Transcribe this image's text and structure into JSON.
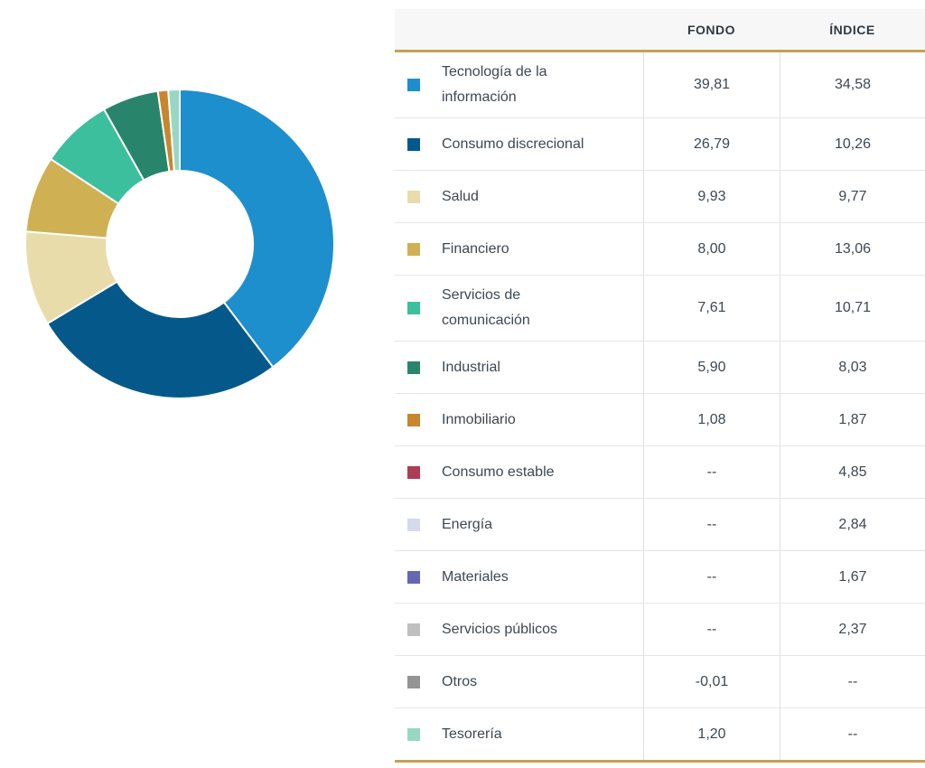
{
  "table": {
    "headers": {
      "sector": "",
      "fondo": "FONDO",
      "indice": "ÍNDICE"
    },
    "rows": [
      {
        "sector": "Tecnología de la información",
        "fondo": "39,81",
        "indice": "34,58",
        "color": "#1d8fcc"
      },
      {
        "sector": "Consumo discrecional",
        "fondo": "26,79",
        "indice": "10,26",
        "color": "#04598a"
      },
      {
        "sector": "Salud",
        "fondo": "9,93",
        "indice": "9,77",
        "color": "#e9dcab"
      },
      {
        "sector": "Financiero",
        "fondo": "8,00",
        "indice": "13,06",
        "color": "#cfb053"
      },
      {
        "sector": "Servicios de comunicación",
        "fondo": "7,61",
        "indice": "10,71",
        "color": "#3cbf9c"
      },
      {
        "sector": "Industrial",
        "fondo": "5,90",
        "indice": "8,03",
        "color": "#28856b"
      },
      {
        "sector": "Inmobiliario",
        "fondo": "1,08",
        "indice": "1,87",
        "color": "#c8862e"
      },
      {
        "sector": "Consumo estable",
        "fondo": "--",
        "indice": "4,85",
        "color": "#ad3c55"
      },
      {
        "sector": "Energía",
        "fondo": "--",
        "indice": "2,84",
        "color": "#d5d9eb"
      },
      {
        "sector": "Materiales",
        "fondo": "--",
        "indice": "1,67",
        "color": "#6568b1"
      },
      {
        "sector": "Servicios públicos",
        "fondo": "--",
        "indice": "2,37",
        "color": "#bfbfbf"
      },
      {
        "sector": "Otros",
        "fondo": "-0,01",
        "indice": "--",
        "color": "#949494"
      },
      {
        "sector": "Tesorería",
        "fondo": "1,20",
        "indice": "--",
        "color": "#98d8c2"
      }
    ],
    "accent_color": "#c3a352",
    "header_bg": "#f7f7f7"
  },
  "chart_data": {
    "type": "pie",
    "style": "donut",
    "title": "",
    "categories": [
      "Tecnología de la información",
      "Consumo discrecional",
      "Salud",
      "Financiero",
      "Servicios de comunicación",
      "Industrial",
      "Inmobiliario",
      "Consumo estable",
      "Energía",
      "Materiales",
      "Servicios públicos",
      "Otros",
      "Tesorería"
    ],
    "series": [
      {
        "name": "FONDO",
        "values": [
          39.81,
          26.79,
          9.93,
          8.0,
          7.61,
          5.9,
          1.08,
          null,
          null,
          null,
          null,
          -0.01,
          1.2
        ]
      },
      {
        "name": "ÍNDICE",
        "values": [
          34.58,
          10.26,
          9.77,
          13.06,
          10.71,
          8.03,
          1.87,
          4.85,
          2.84,
          1.67,
          2.37,
          null,
          null
        ]
      }
    ],
    "donut_plots_series": "FONDO",
    "colors": [
      "#1d8fcc",
      "#04598a",
      "#e9dcab",
      "#cfb053",
      "#3cbf9c",
      "#28856b",
      "#c8862e",
      "#ad3c55",
      "#d5d9eb",
      "#6568b1",
      "#bfbfbf",
      "#949494",
      "#98d8c2"
    ],
    "start_angle_deg": 0,
    "direction": "clockwise",
    "inner_radius_ratio": 0.47,
    "legend_position": "table-right",
    "grid": false
  }
}
